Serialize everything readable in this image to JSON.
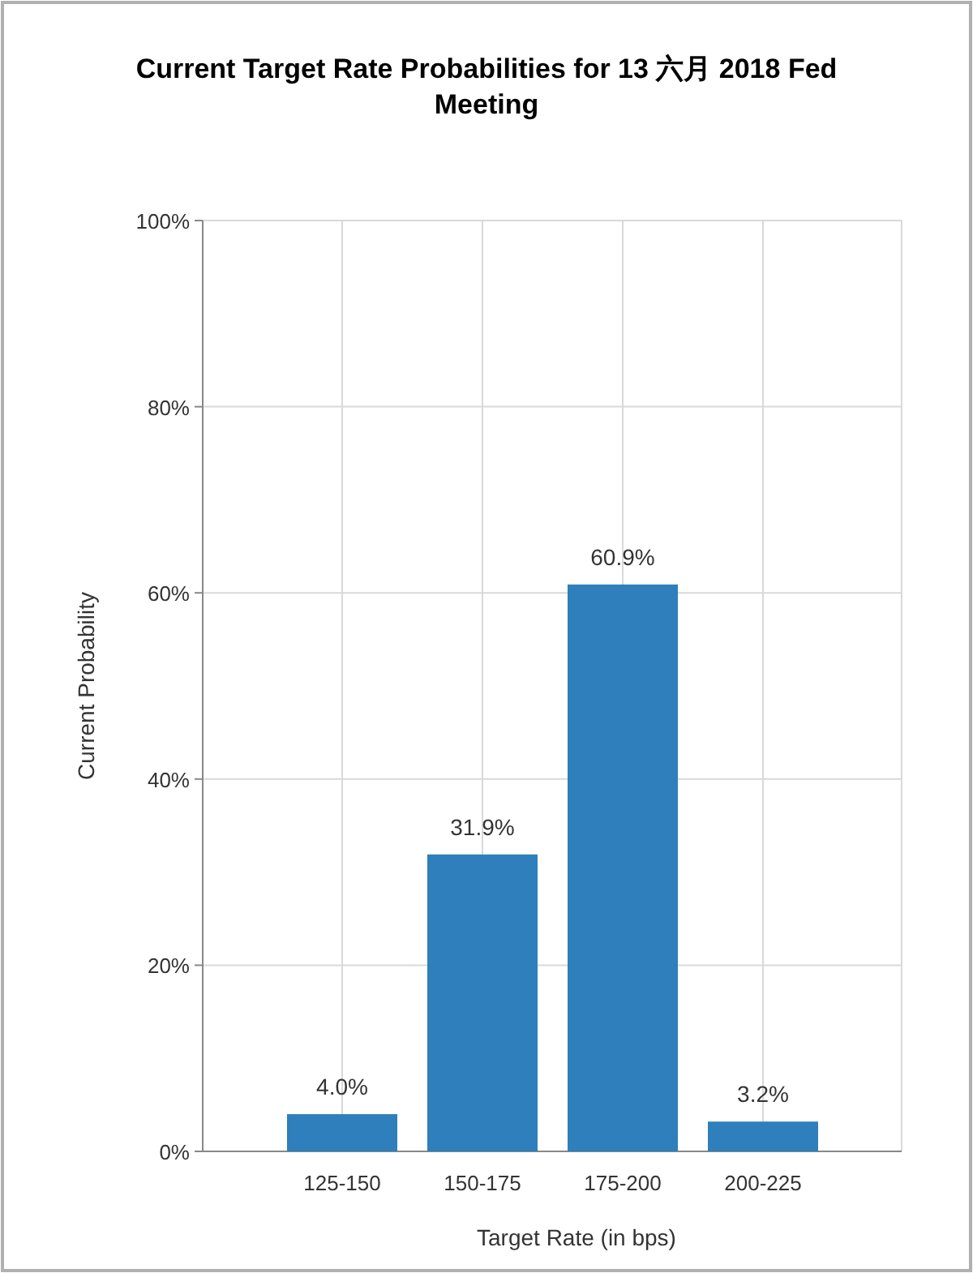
{
  "chart_data": {
    "type": "bar",
    "title": "Current Target Rate Probabilities for 13 六月 2018 Fed Meeting",
    "xlabel": "Target Rate (in bps)",
    "ylabel": "Current Probability",
    "categories": [
      "125-150",
      "150-175",
      "175-200",
      "200-225"
    ],
    "values": [
      4.0,
      31.9,
      60.9,
      3.2
    ],
    "value_labels": [
      "4.0%",
      "31.9%",
      "60.9%",
      "3.2%"
    ],
    "color": "#2e7fbb",
    "ylim": [
      0,
      100
    ],
    "yticks": [
      {
        "value": 0,
        "label": "0%"
      },
      {
        "value": 20,
        "label": "20%"
      },
      {
        "value": 40,
        "label": "40%"
      },
      {
        "value": 60,
        "label": "60%"
      },
      {
        "value": 80,
        "label": "80%"
      },
      {
        "value": 100,
        "label": "100%"
      }
    ],
    "grid": true
  }
}
